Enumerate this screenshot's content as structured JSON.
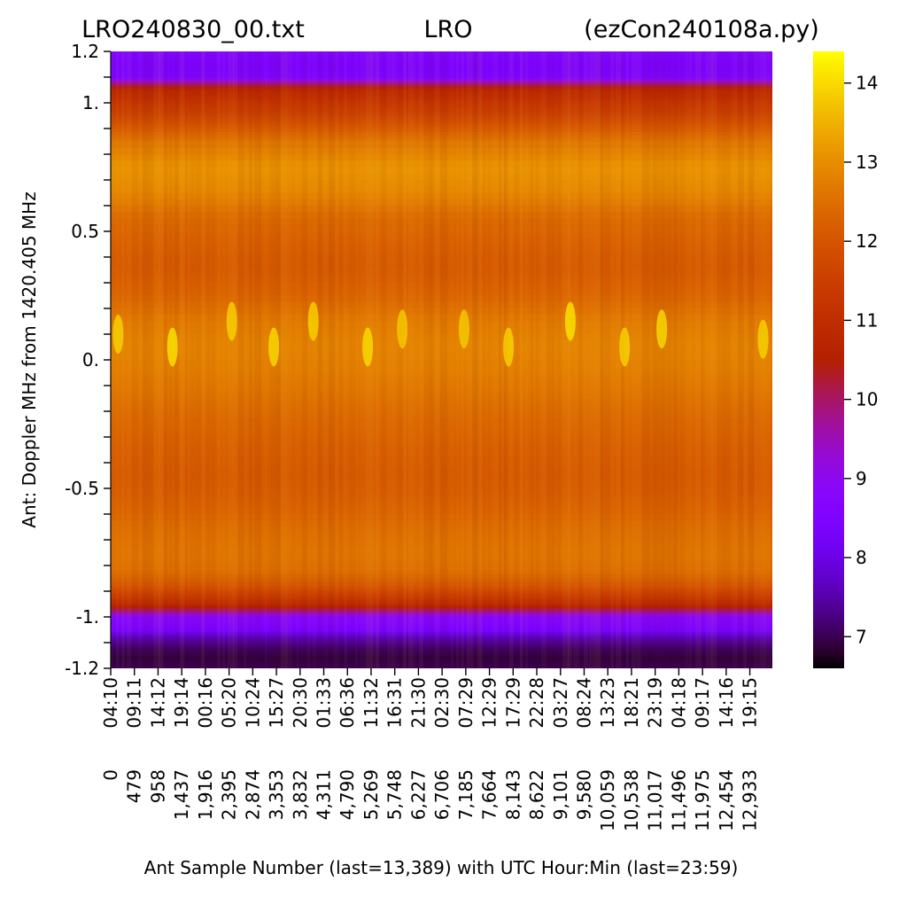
{
  "chart_data": {
    "type": "heatmap",
    "title_left": "LRO240830_00.txt",
    "title_center": "LRO",
    "title_right": "(ezCon240108a.py)",
    "xlabel": "Ant Sample Number (last=13,389) with UTC Hour:Min (last=23:59)",
    "ylabel": "Ant:  Doppler MHz from 1420.405 MHz",
    "ylim": [
      -1.2,
      1.2
    ],
    "xlim": [
      0,
      13389
    ],
    "y_tick_labels": [
      {
        "value": 1.2,
        "label": "1.2"
      },
      {
        "value": 1.0,
        "label": "1."
      },
      {
        "value": 0.5,
        "label": "0.5"
      },
      {
        "value": 0.0,
        "label": "0."
      },
      {
        "value": -0.5,
        "label": "-0.5"
      },
      {
        "value": -1.0,
        "label": "-1."
      },
      {
        "value": -1.2,
        "label": "-1.2"
      }
    ],
    "y_minor_ticks": [
      1.1,
      0.9,
      0.8,
      0.7,
      0.6,
      0.4,
      0.3,
      0.2,
      0.1,
      -0.1,
      -0.2,
      -0.3,
      -0.4,
      -0.6,
      -0.7,
      -0.8,
      -0.9,
      -1.1
    ],
    "x_ticks": [
      {
        "sample": 0,
        "sample_label": "0",
        "time_label": "04:10"
      },
      {
        "sample": 479,
        "sample_label": "479",
        "time_label": "09:11"
      },
      {
        "sample": 958,
        "sample_label": "958",
        "time_label": "14:12"
      },
      {
        "sample": 1437,
        "sample_label": "1,437",
        "time_label": "19:14"
      },
      {
        "sample": 1916,
        "sample_label": "1,916",
        "time_label": "00:16"
      },
      {
        "sample": 2395,
        "sample_label": "2,395",
        "time_label": "05:20"
      },
      {
        "sample": 2874,
        "sample_label": "2,874",
        "time_label": "10:24"
      },
      {
        "sample": 3353,
        "sample_label": "3,353",
        "time_label": "15:27"
      },
      {
        "sample": 3832,
        "sample_label": "3,832",
        "time_label": "20:30"
      },
      {
        "sample": 4311,
        "sample_label": "4,311",
        "time_label": "01:33"
      },
      {
        "sample": 4790,
        "sample_label": "4,790",
        "time_label": "06:36"
      },
      {
        "sample": 5269,
        "sample_label": "5,269",
        "time_label": "11:32"
      },
      {
        "sample": 5748,
        "sample_label": "5,748",
        "time_label": "16:31"
      },
      {
        "sample": 6227,
        "sample_label": "6,227",
        "time_label": "21:30"
      },
      {
        "sample": 6706,
        "sample_label": "6,706",
        "time_label": "02:30"
      },
      {
        "sample": 7185,
        "sample_label": "7,185",
        "time_label": "07:29"
      },
      {
        "sample": 7664,
        "sample_label": "7,664",
        "time_label": "12:29"
      },
      {
        "sample": 8143,
        "sample_label": "8,143",
        "time_label": "17:29"
      },
      {
        "sample": 8622,
        "sample_label": "8,622",
        "time_label": "22:28"
      },
      {
        "sample": 9101,
        "sample_label": "9,101",
        "time_label": "03:27"
      },
      {
        "sample": 9580,
        "sample_label": "9,580",
        "time_label": "08:24"
      },
      {
        "sample": 10059,
        "sample_label": "10,059",
        "time_label": "13:23"
      },
      {
        "sample": 10538,
        "sample_label": "10,538",
        "time_label": "18:21"
      },
      {
        "sample": 11017,
        "sample_label": "11,017",
        "time_label": "23:19"
      },
      {
        "sample": 11496,
        "sample_label": "11,496",
        "time_label": "04:18"
      },
      {
        "sample": 11975,
        "sample_label": "11,975",
        "time_label": "09:17"
      },
      {
        "sample": 12454,
        "sample_label": "12,454",
        "time_label": "14:16"
      },
      {
        "sample": 12933,
        "sample_label": "12,933",
        "time_label": "19:15"
      }
    ],
    "colorbar": {
      "range": [
        6.6,
        14.4
      ],
      "colormap": "gnuplot",
      "ticks": [
        {
          "value": 7,
          "label": "7"
        },
        {
          "value": 8,
          "label": "8"
        },
        {
          "value": 9,
          "label": "9"
        },
        {
          "value": 10,
          "label": "10"
        },
        {
          "value": 11,
          "label": "11"
        },
        {
          "value": 12,
          "label": "12"
        },
        {
          "value": 13,
          "label": "13"
        },
        {
          "value": 14,
          "label": "14"
        }
      ]
    },
    "value_profile_by_doppler": [
      {
        "y": 1.2,
        "v": 8.7
      },
      {
        "y": 1.15,
        "v": 8.4
      },
      {
        "y": 1.1,
        "v": 8.5
      },
      {
        "y": 1.08,
        "v": 9.6
      },
      {
        "y": 1.05,
        "v": 10.8
      },
      {
        "y": 1.0,
        "v": 11.2
      },
      {
        "y": 0.95,
        "v": 11.6
      },
      {
        "y": 0.9,
        "v": 12.1
      },
      {
        "y": 0.85,
        "v": 12.6
      },
      {
        "y": 0.75,
        "v": 13.1
      },
      {
        "y": 0.65,
        "v": 12.9
      },
      {
        "y": 0.55,
        "v": 12.4
      },
      {
        "y": 0.45,
        "v": 12.2
      },
      {
        "y": 0.35,
        "v": 12.1
      },
      {
        "y": 0.25,
        "v": 12.3
      },
      {
        "y": 0.15,
        "v": 12.7
      },
      {
        "y": 0.05,
        "v": 12.85
      },
      {
        "y": -0.05,
        "v": 12.75
      },
      {
        "y": -0.15,
        "v": 12.55
      },
      {
        "y": -0.25,
        "v": 12.35
      },
      {
        "y": -0.35,
        "v": 12.2
      },
      {
        "y": -0.45,
        "v": 12.1
      },
      {
        "y": -0.55,
        "v": 12.2
      },
      {
        "y": -0.65,
        "v": 12.45
      },
      {
        "y": -0.75,
        "v": 12.6
      },
      {
        "y": -0.82,
        "v": 12.5
      },
      {
        "y": -0.88,
        "v": 12.0
      },
      {
        "y": -0.92,
        "v": 11.4
      },
      {
        "y": -0.95,
        "v": 10.9
      },
      {
        "y": -0.98,
        "v": 9.8
      },
      {
        "y": -1.0,
        "v": 8.8
      },
      {
        "y": -1.05,
        "v": 8.4
      },
      {
        "y": -1.08,
        "v": 7.6
      },
      {
        "y": -1.12,
        "v": 7.1
      },
      {
        "y": -1.16,
        "v": 6.9
      },
      {
        "y": -1.2,
        "v": 7.0
      }
    ],
    "hotspots": [
      {
        "sample": 150,
        "y": 0.1,
        "v": 14.0
      },
      {
        "sample": 1250,
        "y": 0.05,
        "v": 14.2
      },
      {
        "sample": 2450,
        "y": 0.15,
        "v": 14.0
      },
      {
        "sample": 3300,
        "y": 0.05,
        "v": 14.1
      },
      {
        "sample": 4100,
        "y": 0.15,
        "v": 14.0
      },
      {
        "sample": 5200,
        "y": 0.05,
        "v": 14.1
      },
      {
        "sample": 5900,
        "y": 0.12,
        "v": 13.9
      },
      {
        "sample": 7150,
        "y": 0.12,
        "v": 13.9
      },
      {
        "sample": 8050,
        "y": 0.05,
        "v": 14.0
      },
      {
        "sample": 9300,
        "y": 0.15,
        "v": 14.2
      },
      {
        "sample": 10400,
        "y": 0.05,
        "v": 14.0
      },
      {
        "sample": 11150,
        "y": 0.12,
        "v": 14.1
      },
      {
        "sample": 13200,
        "y": 0.08,
        "v": 14.0
      }
    ]
  }
}
